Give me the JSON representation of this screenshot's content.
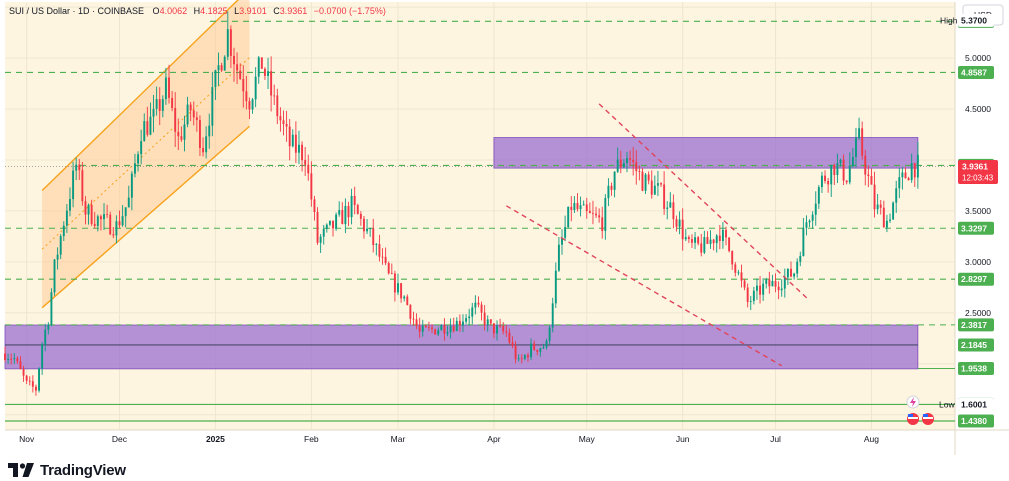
{
  "header": {
    "symbol": "SUI / US Dollar · 1D · COINBASE",
    "o_label": "O",
    "o_value": "4.0062",
    "h_label": "H",
    "h_value": "4.1825",
    "l_label": "L",
    "l_value": "3.9101",
    "c_label": "C",
    "c_value": "3.9361",
    "change": "−0.0700 (−1.75%)"
  },
  "currency_button": "USD",
  "brand": "TradingView",
  "colors": {
    "background": "#fdf5e0",
    "up": "#089981",
    "down": "#f23645",
    "level_line": "#4caf50",
    "zone_fill": "#9b6fd1",
    "channel": "#f7a21b",
    "trend_dash": "#e0455a"
  },
  "chart_data": {
    "type": "candlestick",
    "symbol": "SUI / US Dollar",
    "interval": "1D",
    "exchange": "COINBASE",
    "x_ticks": [
      "Nov",
      "Dec",
      "2025",
      "Feb",
      "Mar",
      "Apr",
      "May",
      "Jun",
      "Jul",
      "Aug"
    ],
    "y_ticks": [
      "5.0000",
      "4.5000",
      "3.5000",
      "3.0000",
      "2.5000"
    ],
    "ylim": [
      1.35,
      5.55
    ],
    "grid": true,
    "price_path": [
      {
        "date": "2024-10-25",
        "price": 2.1
      },
      {
        "date": "2024-10-28",
        "price": 2.05
      },
      {
        "date": "2024-11-01",
        "price": 1.8
      },
      {
        "date": "2024-11-04",
        "price": 1.75
      },
      {
        "date": "2024-11-06",
        "price": 2.2
      },
      {
        "date": "2024-11-08",
        "price": 2.45
      },
      {
        "date": "2024-11-10",
        "price": 2.95
      },
      {
        "date": "2024-11-13",
        "price": 3.4
      },
      {
        "date": "2024-11-17",
        "price": 3.95
      },
      {
        "date": "2024-11-20",
        "price": 3.5
      },
      {
        "date": "2024-11-25",
        "price": 3.4
      },
      {
        "date": "2024-11-30",
        "price": 3.35
      },
      {
        "date": "2024-12-04",
        "price": 3.6
      },
      {
        "date": "2024-12-08",
        "price": 4.3
      },
      {
        "date": "2024-12-12",
        "price": 4.4
      },
      {
        "date": "2024-12-16",
        "price": 4.7
      },
      {
        "date": "2024-12-20",
        "price": 4.2
      },
      {
        "date": "2024-12-24",
        "price": 4.5
      },
      {
        "date": "2024-12-28",
        "price": 4.15
      },
      {
        "date": "2025-01-02",
        "price": 4.9
      },
      {
        "date": "2025-01-05",
        "price": 5.25
      },
      {
        "date": "2025-01-08",
        "price": 4.9
      },
      {
        "date": "2025-01-12",
        "price": 4.6
      },
      {
        "date": "2025-01-16",
        "price": 4.95
      },
      {
        "date": "2025-01-20",
        "price": 4.55
      },
      {
        "date": "2025-01-25",
        "price": 4.15
      },
      {
        "date": "2025-01-30",
        "price": 4.05
      },
      {
        "date": "2025-02-03",
        "price": 3.2
      },
      {
        "date": "2025-02-08",
        "price": 3.35
      },
      {
        "date": "2025-02-14",
        "price": 3.55
      },
      {
        "date": "2025-02-20",
        "price": 3.25
      },
      {
        "date": "2025-02-26",
        "price": 2.85
      },
      {
        "date": "2025-03-03",
        "price": 2.65
      },
      {
        "date": "2025-03-08",
        "price": 2.3
      },
      {
        "date": "2025-03-14",
        "price": 2.35
      },
      {
        "date": "2025-03-20",
        "price": 2.4
      },
      {
        "date": "2025-03-26",
        "price": 2.55
      },
      {
        "date": "2025-03-31",
        "price": 2.35
      },
      {
        "date": "2025-04-05",
        "price": 2.3
      },
      {
        "date": "2025-04-09",
        "price": 2.0
      },
      {
        "date": "2025-04-13",
        "price": 2.15
      },
      {
        "date": "2025-04-18",
        "price": 2.18
      },
      {
        "date": "2025-04-22",
        "price": 3.1
      },
      {
        "date": "2025-04-26",
        "price": 3.55
      },
      {
        "date": "2025-05-01",
        "price": 3.45
      },
      {
        "date": "2025-05-06",
        "price": 3.4
      },
      {
        "date": "2025-05-10",
        "price": 3.9
      },
      {
        "date": "2025-05-14",
        "price": 4.05
      },
      {
        "date": "2025-05-19",
        "price": 3.8
      },
      {
        "date": "2025-05-24",
        "price": 3.7
      },
      {
        "date": "2025-05-29",
        "price": 3.5
      },
      {
        "date": "2025-06-03",
        "price": 3.15
      },
      {
        "date": "2025-06-08",
        "price": 3.15
      },
      {
        "date": "2025-06-13",
        "price": 3.3
      },
      {
        "date": "2025-06-17",
        "price": 3.05
      },
      {
        "date": "2025-06-22",
        "price": 2.6
      },
      {
        "date": "2025-06-27",
        "price": 2.75
      },
      {
        "date": "2025-07-02",
        "price": 2.8
      },
      {
        "date": "2025-07-07",
        "price": 2.9
      },
      {
        "date": "2025-07-11",
        "price": 3.4
      },
      {
        "date": "2025-07-16",
        "price": 3.8
      },
      {
        "date": "2025-07-20",
        "price": 3.95
      },
      {
        "date": "2025-07-24",
        "price": 3.85
      },
      {
        "date": "2025-07-28",
        "price": 4.2
      },
      {
        "date": "2025-08-02",
        "price": 3.55
      },
      {
        "date": "2025-08-06",
        "price": 3.4
      },
      {
        "date": "2025-08-10",
        "price": 3.75
      },
      {
        "date": "2025-08-14",
        "price": 3.95
      },
      {
        "date": "2025-08-16",
        "price": 3.94
      }
    ],
    "levels": [
      {
        "label": "5.3600",
        "price": 5.36
      },
      {
        "label": "4.8587",
        "price": 4.8587
      },
      {
        "label": "3.3297",
        "price": 3.3297
      },
      {
        "label": "2.8297",
        "price": 2.8297
      },
      {
        "label": "2.3817",
        "price": 2.3817
      },
      {
        "label": "1.9538",
        "price": 1.9538
      },
      {
        "label": "1.6009",
        "price": 1.6009
      },
      {
        "label": "1.4380",
        "price": 1.438
      }
    ],
    "tags": [
      {
        "label": "3.9465",
        "price": 3.9465,
        "kind": "level"
      },
      {
        "label": "2.1845",
        "price": 2.1845,
        "kind": "level"
      },
      {
        "label": "1.9538",
        "price": 1.9538,
        "kind": "level"
      }
    ],
    "last_price": {
      "value": "3.9361",
      "countdown": "12:03:43",
      "price": 3.9361
    },
    "high": {
      "label": "High",
      "value": "5.3700",
      "price": 5.37
    },
    "low": {
      "label": "Low",
      "value": "1.6001",
      "price": 1.6001
    },
    "zones": [
      {
        "from_price": 3.92,
        "to_price": 4.22,
        "from_date": "2025-04-01",
        "to_date": "2025-08-16"
      },
      {
        "from_price": 1.95,
        "to_price": 2.38,
        "from_date": "2024-10-25",
        "to_date": "2025-08-16"
      }
    ],
    "channel": {
      "upper": [
        {
          "date": "2024-11-06",
          "price": 3.7
        },
        {
          "date": "2025-01-12",
          "price": 5.68
        }
      ],
      "lower": [
        {
          "date": "2024-11-06",
          "price": 2.55
        },
        {
          "date": "2025-01-12",
          "price": 4.33
        }
      ]
    },
    "down_trendlines": [
      [
        {
          "date": "2025-05-05",
          "price": 4.55
        },
        {
          "date": "2025-07-12",
          "price": 2.62
        }
      ],
      [
        {
          "date": "2025-04-05",
          "price": 3.55
        },
        {
          "date": "2025-07-03",
          "price": 1.98
        }
      ]
    ]
  }
}
